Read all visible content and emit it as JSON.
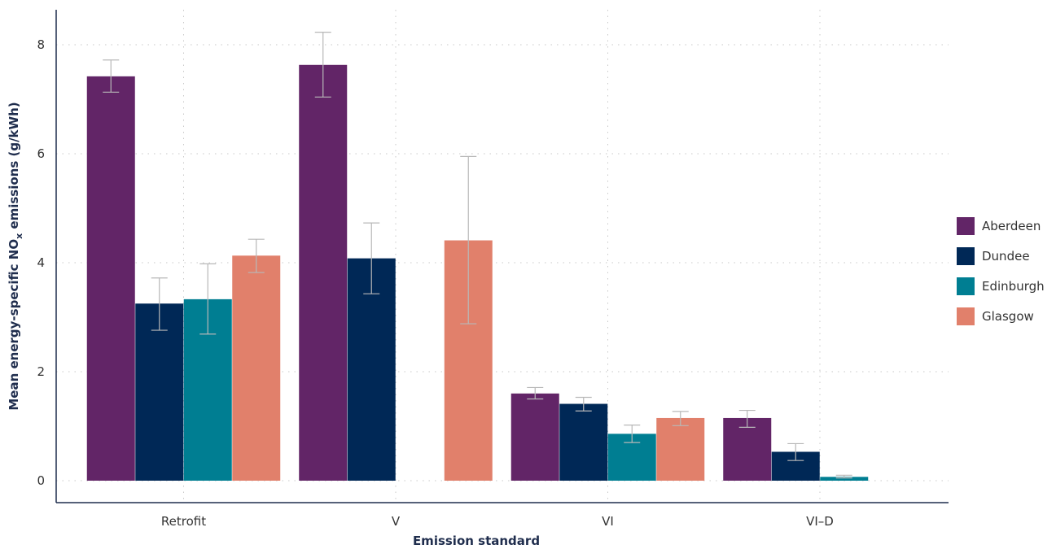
{
  "chart_data": {
    "type": "bar",
    "xlabel": "Emission standard",
    "ylabel": "Mean energy-specific NO",
    "ylabel_sub": "x",
    "ylabel_suffix": " emissions (g/kWh)",
    "categories": [
      "Retrofit",
      "V",
      "VI",
      "VI–D"
    ],
    "ylim": [
      -0.4,
      8.6
    ],
    "yticks": [
      0,
      2,
      4,
      6,
      8
    ],
    "grid": true,
    "legend_position": "right",
    "series": [
      {
        "name": "Aberdeen",
        "color": "#622567",
        "values": [
          7.42,
          7.63,
          1.6,
          1.15
        ],
        "err_low": [
          7.13,
          7.04,
          1.5,
          0.98
        ],
        "err_high": [
          7.72,
          8.23,
          1.71,
          1.29
        ]
      },
      {
        "name": "Dundee",
        "color": "#002856",
        "values": [
          3.25,
          4.08,
          1.41,
          0.53
        ],
        "err_low": [
          2.76,
          3.43,
          1.28,
          0.37
        ],
        "err_high": [
          3.72,
          4.73,
          1.53,
          0.68
        ]
      },
      {
        "name": "Edinburgh",
        "color": "#007e92",
        "values": [
          3.33,
          null,
          0.86,
          0.07
        ],
        "err_low": [
          2.69,
          null,
          0.7,
          0.05
        ],
        "err_high": [
          3.98,
          null,
          1.02,
          0.1
        ]
      },
      {
        "name": "Glasgow",
        "color": "#e1806b",
        "values": [
          4.13,
          4.41,
          1.15,
          null
        ],
        "err_low": [
          3.82,
          2.88,
          1.01,
          null
        ],
        "err_high": [
          4.43,
          5.95,
          1.27,
          null
        ]
      }
    ]
  }
}
